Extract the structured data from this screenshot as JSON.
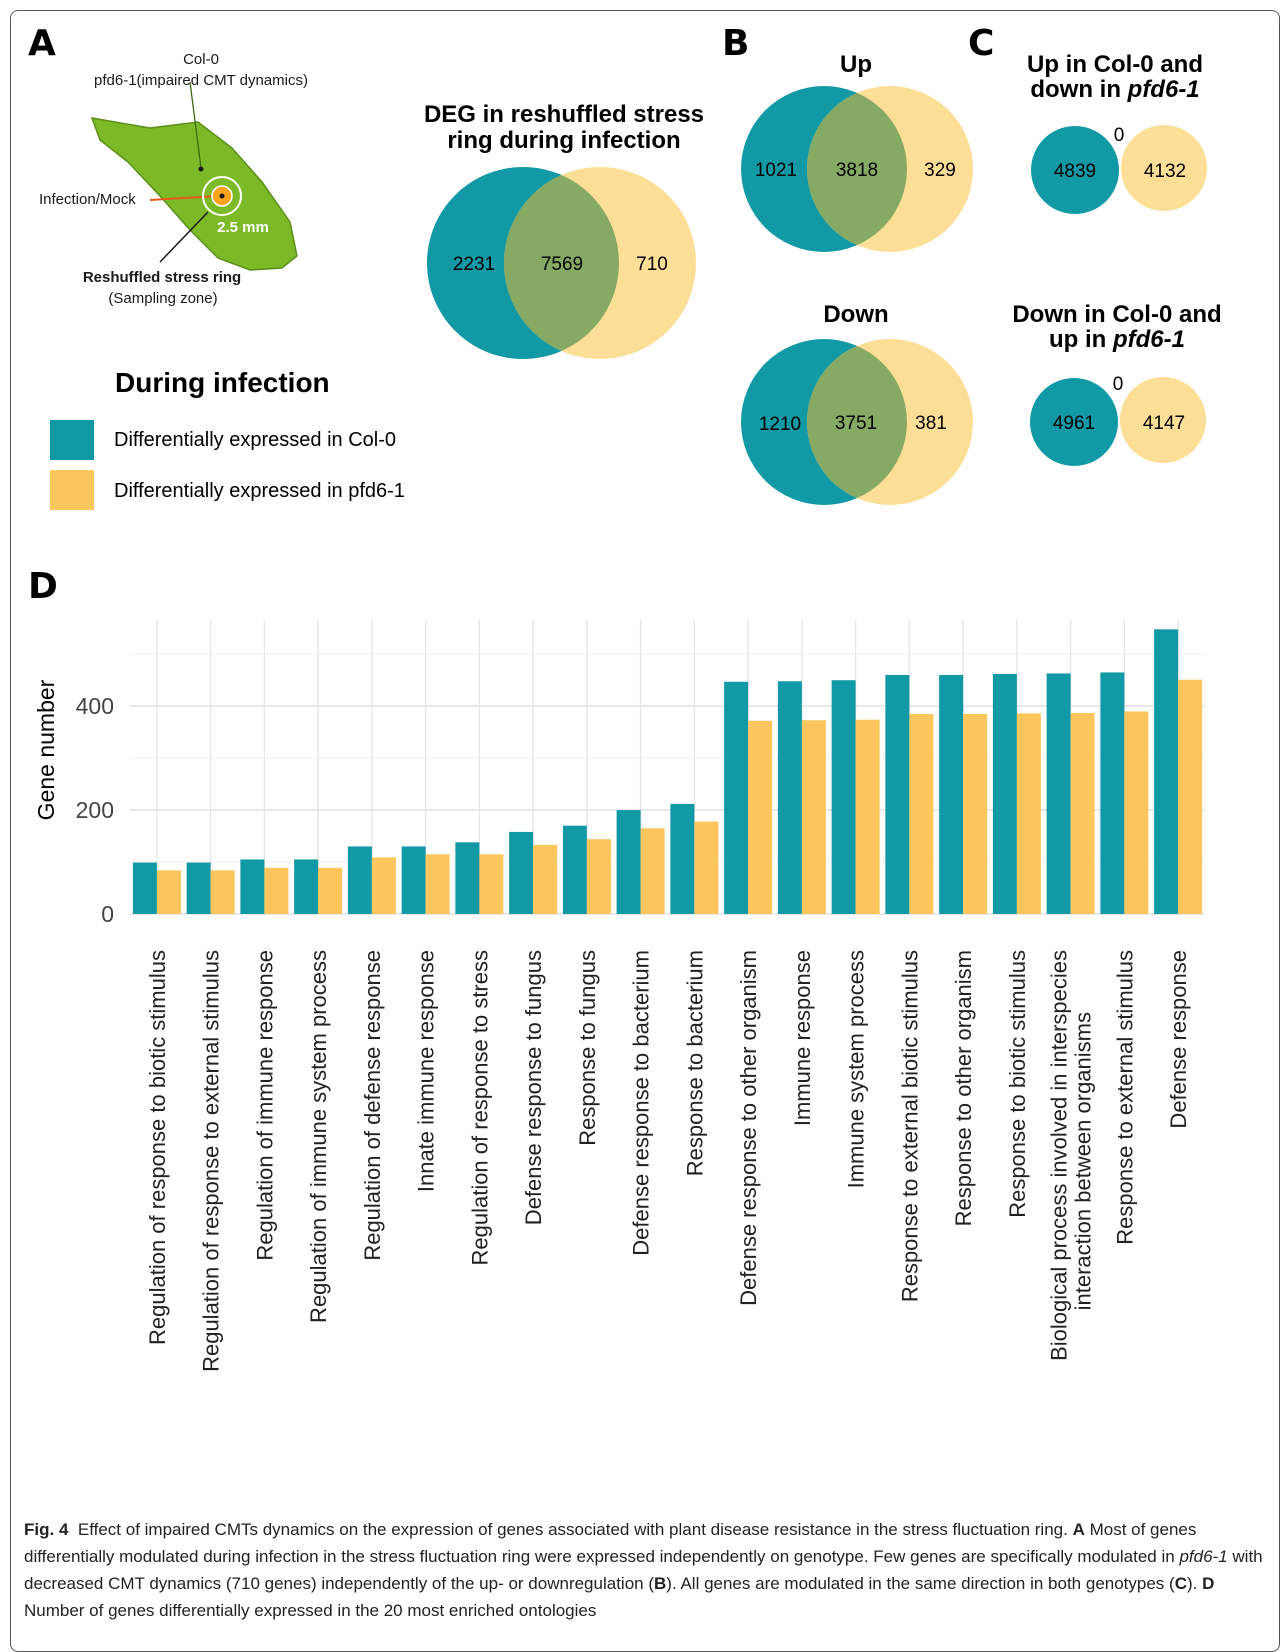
{
  "colors": {
    "col0": "#1299A6",
    "pfd6": "#FDC65C",
    "overlap": "#86A964",
    "leaf": "#7CB927",
    "leaf_dark": "#5C8F1A",
    "circle_light": "#FDDE96"
  },
  "panelA": {
    "letter": "A",
    "label_col0": "Col-0",
    "label_pfd6": "pfd6-1(impaired CMT dynamics)",
    "label_infection": "Infection/Mock",
    "label_scale": "2.5 mm",
    "label_ring": "Reshuffled stress ring",
    "label_zone": "(Sampling zone)",
    "venn_title_1": "DEG in reshuffled stress",
    "venn_title_2": "ring during infection",
    "venn": {
      "left": "2231",
      "overlap": "7569",
      "right": "710"
    },
    "legend_title": "During infection",
    "legend_col0": "Differentially expressed in Col-0",
    "legend_pfd6": "Differentially expressed in pfd6-1"
  },
  "panelB": {
    "letter": "B",
    "up_title": "Up",
    "up": {
      "left": "1021",
      "overlap": "3818",
      "right": "329"
    },
    "down_title": "Down",
    "down": {
      "left": "1210",
      "overlap": "3751",
      "right": "381"
    }
  },
  "panelC": {
    "letter": "C",
    "top_title_1": "Up in Col-0 and",
    "top_title_2a": "down in ",
    "top_title_2b": "pfd6-1",
    "top": {
      "left": "4839",
      "overlap": "0",
      "right": "4132"
    },
    "bottom_title_1": "Down in Col-0 and",
    "bottom_title_2a": "up in ",
    "bottom_title_2b": "pfd6-1",
    "bottom": {
      "left": "4961",
      "overlap": "0",
      "right": "4147"
    }
  },
  "panelD": {
    "letter": "D"
  },
  "chart_data": {
    "type": "bar",
    "ylabel": "Gene number",
    "ylim": [
      0,
      540
    ],
    "yticks": [
      0,
      200,
      400
    ],
    "grid": true,
    "categories": [
      "Regulation of response to biotic stimulus",
      "Regulation of response to external stimulus",
      "Regulation of immune response",
      "Regulation of immune system process",
      "Regulation of defense response",
      "Innate immune response",
      "Regulation of response to stress",
      "Defense response to fungus",
      "Response to fungus",
      "Defense response to bacterium",
      "Response to bacterium",
      "Defense response to other organism",
      "Immune response",
      "Immune system process",
      "Response to external biotic stimulus",
      "Response to other organism",
      "Response to biotic stimulus",
      "Biological process involved in interspecies interaction between organisms",
      "Response to external stimulus",
      "Defense response"
    ],
    "series": [
      {
        "values": [
          99,
          99,
          105,
          105,
          130,
          130,
          138,
          158,
          170,
          200,
          212,
          447,
          448,
          450,
          460,
          460,
          462,
          463,
          465,
          548
        ]
      },
      {
        "values": [
          84,
          84,
          89,
          89,
          109,
          115,
          115,
          133,
          144,
          165,
          178,
          372,
          373,
          374,
          385,
          385,
          386,
          387,
          390,
          451
        ]
      }
    ]
  },
  "caption": {
    "fig_label": "Fig. 4",
    "s1": "Effect of impaired CMTs dynamics on the expression of genes associated with plant disease resistance in the stress fluctuation ring.",
    "A": "A",
    "s2": "Most of genes differentially modulated during infection in the stress fluctuation ring were expressed independently on genotype. Few genes are specifically modulated in",
    "pfd": "pfd6-1",
    "s3": "with decreased CMT dynamics (710 genes) independently of the up- or downregulation (",
    "B": "B",
    "s4": "). All genes are modulated in the same direction in both genotypes (",
    "C": "C",
    "s5": ").",
    "D": "D",
    "s6": "Number of genes differentially expressed in the 20 most enriched ontologies"
  }
}
